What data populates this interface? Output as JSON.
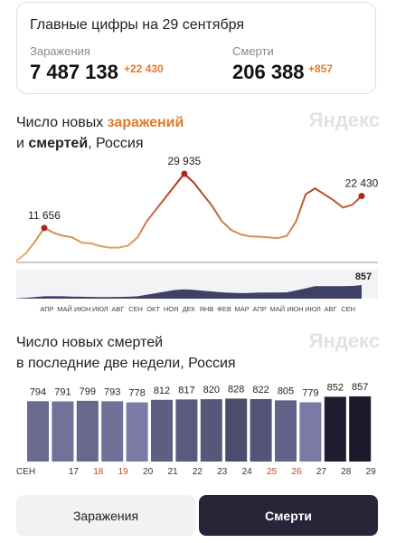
{
  "summary": {
    "title": "Главные цифры на 29 сентября",
    "cases": {
      "label": "Заражения",
      "value": "7 487 138",
      "delta": "+22 430"
    },
    "deaths": {
      "label": "Смерти",
      "value": "206 388",
      "delta": "+857"
    }
  },
  "chart_data": [
    {
      "type": "line",
      "title": {
        "start": "Число новых ",
        "highlight": "заражений",
        "second_start": "и ",
        "bold": "смертей",
        "second_end": ", Россия"
      },
      "watermark": "Яндекс",
      "months": [
        "АПР",
        "МАЙ",
        "ИЮН",
        "ИЮЛ",
        "АВГ",
        "СЕН",
        "ОКТ",
        "НОЯ",
        "ДЕК",
        "ЯНВ",
        "ФЕВ",
        "МАР",
        "АПР",
        "МАЙ",
        "ИЮН",
        "ИЮЛ",
        "АВГ",
        "СЕН"
      ],
      "series": [
        {
          "colors": [
            "#e8b868",
            "#a8281c"
          ],
          "values": [
            500,
            3000,
            7000,
            11656,
            10000,
            9000,
            8500,
            6700,
            6400,
            5500,
            5000,
            5000,
            5700,
            8500,
            14000,
            18000,
            22000,
            26000,
            29935,
            27000,
            23000,
            19000,
            14000,
            11000,
            9500,
            8800,
            8700,
            8500,
            8200,
            9000,
            14000,
            23000,
            25000,
            23000,
            21000,
            18500,
            19500,
            22430
          ],
          "value_labels": [
            null,
            null,
            null,
            "11 656",
            null,
            null,
            null,
            null,
            null,
            null,
            null,
            null,
            null,
            null,
            null,
            null,
            null,
            null,
            "29 935",
            null,
            null,
            null,
            null,
            null,
            null,
            null,
            null,
            null,
            null,
            null,
            null,
            null,
            null,
            null,
            null,
            null,
            null,
            "22 430"
          ]
        },
        {
          "color": "#3e4068",
          "values": [
            10,
            50,
            100,
            150,
            160,
            150,
            130,
            120,
            110,
            100,
            100,
            110,
            120,
            150,
            250,
            350,
            450,
            550,
            580,
            560,
            500,
            450,
            400,
            370,
            350,
            360,
            380,
            380,
            380,
            400,
            520,
            650,
            780,
            790,
            780,
            790,
            800,
            857
          ]
        }
      ]
    },
    {
      "type": "bar",
      "title": {
        "first": "Число новых смертей",
        "second": "в последние две недели, Россия"
      },
      "watermark": "Яндекс",
      "categories": [
        "СЕН",
        "17",
        "18",
        "19",
        "20",
        "21",
        "22",
        "23",
        "24",
        "25",
        "26",
        "27",
        "28",
        "29"
      ],
      "category_colors": [
        "#333",
        "#333",
        "#c0462c",
        "#c0462c",
        "#333",
        "#333",
        "#333",
        "#333",
        "#333",
        "#c0462c",
        "#c0462c",
        "#333",
        "#333",
        "#333"
      ],
      "values": [
        794,
        791,
        799,
        793,
        778,
        812,
        817,
        820,
        828,
        822,
        805,
        779,
        852,
        857
      ],
      "colors": [
        "#6b6b92",
        "#71719a",
        "#68688e",
        "#707098",
        "#7b7ba6",
        "#5e5e82",
        "#5a5a7e",
        "#57577a",
        "#4c4c6c",
        "#545478",
        "#626288",
        "#7a7aa5",
        "#1e1e30",
        "#1a1a2a"
      ]
    }
  ],
  "buttons": [
    "Заражения",
    "Смерти"
  ]
}
